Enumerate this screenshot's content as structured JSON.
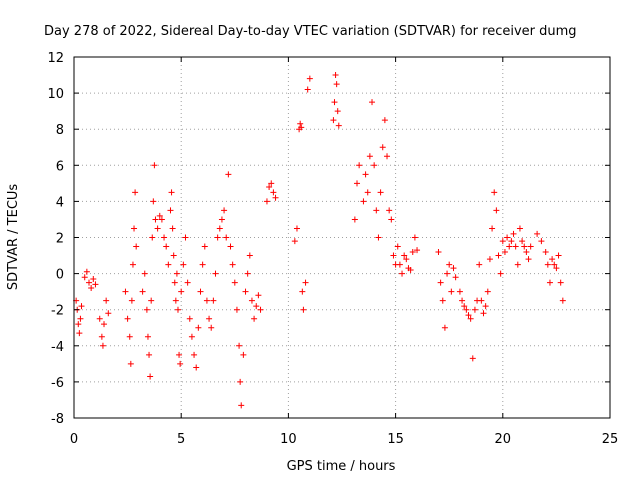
{
  "chart_data": {
    "type": "scatter",
    "title": "Day 278 of 2022, Sidereal Day-to-day VTEC variation (SDTVAR) for receiver dumg",
    "xlabel": "GPS time / hours",
    "ylabel": "SDTVAR / TECUs",
    "xlim": [
      0,
      25
    ],
    "ylim": [
      -8,
      12
    ],
    "xticks": [
      0,
      5,
      10,
      15,
      20,
      25
    ],
    "xtick_labels": [
      "0",
      "5",
      "10",
      "15",
      "20",
      "25"
    ],
    "yticks": [
      -8,
      -6,
      -4,
      -2,
      0,
      2,
      4,
      6,
      8,
      10,
      12
    ],
    "ytick_labels": [
      "-8",
      "-6",
      "-4",
      "-2",
      "0",
      "2",
      "4",
      "6",
      "8",
      "10",
      "12"
    ],
    "grid": true,
    "marker": "plus",
    "marker_color": "#ff0000",
    "series": [
      {
        "name": "SDTVAR",
        "points": [
          [
            0.1,
            -1.5
          ],
          [
            0.15,
            -2.0
          ],
          [
            0.2,
            -2.8
          ],
          [
            0.25,
            -3.3
          ],
          [
            0.3,
            -2.5
          ],
          [
            0.35,
            -1.8
          ],
          [
            0.5,
            -0.2
          ],
          [
            0.6,
            0.1
          ],
          [
            0.7,
            -0.5
          ],
          [
            0.8,
            -0.8
          ],
          [
            0.9,
            -0.3
          ],
          [
            1.0,
            -0.6
          ],
          [
            1.2,
            -2.5
          ],
          [
            1.3,
            -3.5
          ],
          [
            1.35,
            -4.0
          ],
          [
            1.4,
            -2.8
          ],
          [
            1.5,
            -1.5
          ],
          [
            1.6,
            -2.2
          ],
          [
            2.4,
            -1.0
          ],
          [
            2.5,
            -2.5
          ],
          [
            2.6,
            -3.5
          ],
          [
            2.65,
            -5.0
          ],
          [
            2.7,
            -1.5
          ],
          [
            2.75,
            0.5
          ],
          [
            2.8,
            2.5
          ],
          [
            2.85,
            4.5
          ],
          [
            2.9,
            1.5
          ],
          [
            3.2,
            -1.0
          ],
          [
            3.3,
            0.0
          ],
          [
            3.4,
            -2.0
          ],
          [
            3.45,
            -3.5
          ],
          [
            3.5,
            -4.5
          ],
          [
            3.55,
            -5.7
          ],
          [
            3.6,
            -1.5
          ],
          [
            3.65,
            2.0
          ],
          [
            3.7,
            4.0
          ],
          [
            3.75,
            6.0
          ],
          [
            3.8,
            3.0
          ],
          [
            3.9,
            2.5
          ],
          [
            4.0,
            3.2
          ],
          [
            4.1,
            3.0
          ],
          [
            4.2,
            2.0
          ],
          [
            4.3,
            1.5
          ],
          [
            4.4,
            0.5
          ],
          [
            4.5,
            3.5
          ],
          [
            4.55,
            4.5
          ],
          [
            4.6,
            2.5
          ],
          [
            4.65,
            1.0
          ],
          [
            4.7,
            -0.5
          ],
          [
            4.75,
            -1.5
          ],
          [
            4.8,
            0.0
          ],
          [
            4.85,
            -2.0
          ],
          [
            4.9,
            -4.5
          ],
          [
            4.95,
            -5.0
          ],
          [
            5.0,
            -1.0
          ],
          [
            5.1,
            0.5
          ],
          [
            5.2,
            2.0
          ],
          [
            5.3,
            -0.5
          ],
          [
            5.4,
            -2.5
          ],
          [
            5.5,
            -3.5
          ],
          [
            5.6,
            -4.5
          ],
          [
            5.7,
            -5.2
          ],
          [
            5.8,
            -3.0
          ],
          [
            5.9,
            -1.0
          ],
          [
            6.0,
            0.5
          ],
          [
            6.1,
            1.5
          ],
          [
            6.2,
            -1.5
          ],
          [
            6.3,
            -2.5
          ],
          [
            6.4,
            -3.0
          ],
          [
            6.5,
            -1.5
          ],
          [
            6.6,
            0.0
          ],
          [
            6.7,
            2.0
          ],
          [
            6.8,
            2.5
          ],
          [
            6.9,
            3.0
          ],
          [
            7.0,
            3.5
          ],
          [
            7.1,
            2.0
          ],
          [
            7.2,
            5.5
          ],
          [
            7.3,
            1.5
          ],
          [
            7.4,
            0.5
          ],
          [
            7.5,
            -0.5
          ],
          [
            7.6,
            -2.0
          ],
          [
            7.7,
            -4.0
          ],
          [
            7.75,
            -6.0
          ],
          [
            7.8,
            -7.3
          ],
          [
            7.9,
            -4.5
          ],
          [
            8.0,
            -1.0
          ],
          [
            8.1,
            0.0
          ],
          [
            8.2,
            1.0
          ],
          [
            8.3,
            -1.5
          ],
          [
            8.4,
            -2.5
          ],
          [
            8.5,
            -1.8
          ],
          [
            8.6,
            -1.2
          ],
          [
            8.7,
            -2.0
          ],
          [
            9.0,
            4.0
          ],
          [
            9.1,
            4.8
          ],
          [
            9.2,
            5.0
          ],
          [
            9.3,
            4.5
          ],
          [
            9.4,
            4.2
          ],
          [
            10.3,
            1.8
          ],
          [
            10.4,
            2.5
          ],
          [
            10.5,
            8.0
          ],
          [
            10.55,
            8.3
          ],
          [
            10.6,
            8.1
          ],
          [
            10.65,
            -1.0
          ],
          [
            10.7,
            -2.0
          ],
          [
            10.8,
            -0.5
          ],
          [
            10.9,
            10.2
          ],
          [
            11.0,
            10.8
          ],
          [
            12.1,
            8.5
          ],
          [
            12.15,
            9.5
          ],
          [
            12.2,
            11.0
          ],
          [
            12.25,
            10.5
          ],
          [
            12.3,
            9.0
          ],
          [
            12.35,
            8.2
          ],
          [
            13.1,
            3.0
          ],
          [
            13.2,
            5.0
          ],
          [
            13.3,
            6.0
          ],
          [
            13.5,
            4.0
          ],
          [
            13.6,
            5.5
          ],
          [
            13.7,
            4.5
          ],
          [
            13.8,
            6.5
          ],
          [
            13.9,
            9.5
          ],
          [
            14.0,
            6.0
          ],
          [
            14.1,
            3.5
          ],
          [
            14.2,
            2.0
          ],
          [
            14.3,
            4.5
          ],
          [
            14.4,
            7.0
          ],
          [
            14.5,
            8.5
          ],
          [
            14.6,
            6.5
          ],
          [
            14.7,
            3.5
          ],
          [
            14.8,
            3.0
          ],
          [
            14.9,
            1.0
          ],
          [
            15.0,
            0.5
          ],
          [
            15.1,
            1.5
          ],
          [
            15.2,
            0.5
          ],
          [
            15.3,
            0.0
          ],
          [
            15.4,
            1.0
          ],
          [
            15.5,
            0.8
          ],
          [
            15.6,
            0.3
          ],
          [
            15.7,
            0.2
          ],
          [
            15.8,
            1.2
          ],
          [
            15.9,
            2.0
          ],
          [
            16.0,
            1.3
          ],
          [
            17.0,
            1.2
          ],
          [
            17.1,
            -0.5
          ],
          [
            17.2,
            -1.5
          ],
          [
            17.3,
            -3.0
          ],
          [
            17.4,
            0.0
          ],
          [
            17.5,
            0.5
          ],
          [
            17.6,
            -1.0
          ],
          [
            17.7,
            0.3
          ],
          [
            17.8,
            -0.2
          ],
          [
            18.0,
            -1.0
          ],
          [
            18.1,
            -1.5
          ],
          [
            18.2,
            -1.8
          ],
          [
            18.3,
            -2.0
          ],
          [
            18.4,
            -2.3
          ],
          [
            18.5,
            -2.5
          ],
          [
            18.6,
            -4.7
          ],
          [
            18.7,
            -2.0
          ],
          [
            18.8,
            -1.5
          ],
          [
            18.9,
            0.5
          ],
          [
            19.0,
            -1.5
          ],
          [
            19.1,
            -2.2
          ],
          [
            19.2,
            -1.8
          ],
          [
            19.3,
            -1.0
          ],
          [
            19.4,
            0.8
          ],
          [
            19.5,
            2.5
          ],
          [
            19.6,
            4.5
          ],
          [
            19.7,
            3.5
          ],
          [
            19.8,
            1.0
          ],
          [
            19.9,
            0.0
          ],
          [
            20.0,
            1.8
          ],
          [
            20.1,
            1.2
          ],
          [
            20.2,
            2.0
          ],
          [
            20.3,
            1.5
          ],
          [
            20.4,
            1.8
          ],
          [
            20.5,
            2.2
          ],
          [
            20.6,
            1.5
          ],
          [
            20.7,
            0.5
          ],
          [
            20.8,
            2.5
          ],
          [
            20.9,
            1.8
          ],
          [
            21.0,
            1.5
          ],
          [
            21.1,
            1.2
          ],
          [
            21.2,
            0.8
          ],
          [
            21.3,
            1.5
          ],
          [
            21.6,
            2.2
          ],
          [
            21.8,
            1.8
          ],
          [
            22.0,
            1.2
          ],
          [
            22.1,
            0.5
          ],
          [
            22.2,
            -0.5
          ],
          [
            22.3,
            0.8
          ],
          [
            22.4,
            0.5
          ],
          [
            22.5,
            0.3
          ],
          [
            22.6,
            1.0
          ],
          [
            22.7,
            -0.5
          ],
          [
            22.8,
            -1.5
          ]
        ]
      }
    ]
  }
}
